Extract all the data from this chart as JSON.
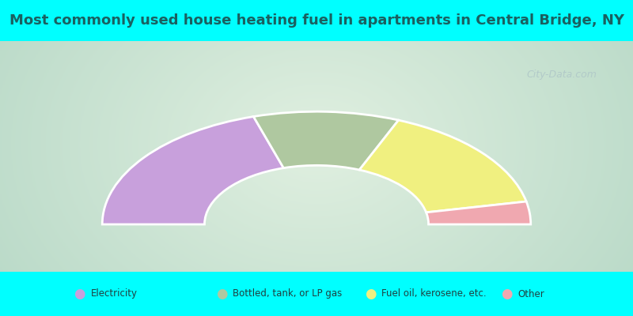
{
  "title": "Most commonly used house heating fuel in apartments in Central Bridge, NY",
  "title_color": "#1a6060",
  "title_fontsize": 13,
  "background_color": "#00FFFF",
  "segments": [
    {
      "label": "Electricity",
      "value": 40.5,
      "color": "#c8a0dc"
    },
    {
      "label": "Bottled, tank, or LP gas",
      "value": 22.0,
      "color": "#afc8a0"
    },
    {
      "label": "Fuel oil, kerosene, etc.",
      "value": 31.0,
      "color": "#f0f080"
    },
    {
      "label": "Other",
      "value": 6.5,
      "color": "#f0a8b0"
    }
  ],
  "legend_text_color": "#204040",
  "watermark_text": "City-Data.com",
  "watermark_color": "#b0c8c8",
  "outer_r": 0.88,
  "inner_r": 0.46
}
